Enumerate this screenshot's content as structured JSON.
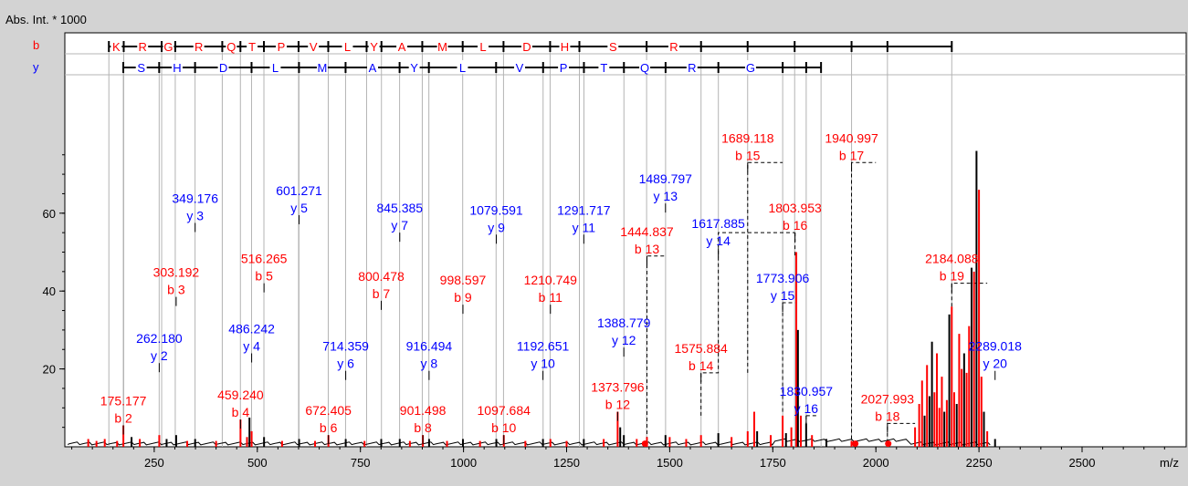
{
  "colors": {
    "background": "#d3d3d3",
    "plot_bg": "#ffffff",
    "b_ions": "#ff0000",
    "y_ions": "#0000ff",
    "spectrum": "#000000",
    "guide": "#b4b4b4"
  },
  "chart_data": {
    "type": "bar",
    "ylabel": "Abs. Int. * 1000",
    "xunit": "m/z",
    "xlim": [
      30,
      2760
    ],
    "ylim": [
      0,
      80
    ],
    "xticks": [
      250,
      500,
      750,
      1000,
      1250,
      1500,
      1750,
      2000,
      2250,
      2500
    ],
    "yticks": [
      20,
      40,
      60
    ],
    "series_labels": [
      "b",
      "y"
    ],
    "b_sequence": {
      "residues": [
        "K",
        "R",
        "G",
        "R",
        "Q",
        "T",
        "P",
        "V",
        "L",
        "Y",
        "A",
        "M",
        "L",
        "D",
        "H",
        "S",
        "R"
      ],
      "boundaries": [
        140,
        176,
        268,
        301,
        415,
        459,
        516,
        600,
        672,
        765,
        801,
        900,
        998,
        1097,
        1210,
        1281,
        1444,
        1576,
        1689,
        1803,
        1941,
        2028,
        2184
      ]
    },
    "y_sequence": {
      "residues": [
        "S",
        "H",
        "D",
        "L",
        "M",
        "A",
        "Y",
        "L",
        "V",
        "P",
        "T",
        "Q",
        "R",
        "G"
      ],
      "boundaries": [
        175,
        262,
        349,
        486,
        601,
        714,
        845,
        916,
        1079,
        1193,
        1292,
        1389,
        1490,
        1618,
        1774,
        1831,
        1867
      ]
    },
    "b_ions": [
      {
        "mz": 175.177,
        "intensity": 5.5,
        "label": "b 2"
      },
      {
        "mz": 303.192,
        "intensity": 38.5,
        "label": "b 3"
      },
      {
        "mz": 459.24,
        "intensity": 7.0,
        "label": "b 4"
      },
      {
        "mz": 516.265,
        "intensity": 42.0,
        "label": "b 5"
      },
      {
        "mz": 672.405,
        "intensity": 3.0,
        "label": "b 6"
      },
      {
        "mz": 800.478,
        "intensity": 37.5,
        "label": "b 7"
      },
      {
        "mz": 901.498,
        "intensity": 3.0,
        "label": "b 8"
      },
      {
        "mz": 998.597,
        "intensity": 36.5,
        "label": "b 9"
      },
      {
        "mz": 1097.684,
        "intensity": 3.0,
        "label": "b 10"
      },
      {
        "mz": 1210.749,
        "intensity": 36.5,
        "label": "b 11"
      },
      {
        "mz": 1373.796,
        "intensity": 9.0,
        "label": "b 12"
      },
      {
        "mz": 1444.837,
        "intensity": 49.0,
        "label": "b 13"
      },
      {
        "mz": 1575.884,
        "intensity": 19.0,
        "label": "b 14"
      },
      {
        "mz": 1689.118,
        "intensity": 73.0,
        "label": "b 15"
      },
      {
        "mz": 1803.953,
        "intensity": 55.0,
        "label": "b 16"
      },
      {
        "mz": 1940.997,
        "intensity": 73.0,
        "label": "b 17"
      },
      {
        "mz": 2027.993,
        "intensity": 6.0,
        "label": "b 18"
      },
      {
        "mz": 2184.088,
        "intensity": 42.0,
        "label": "b 19"
      }
    ],
    "y_ions": [
      {
        "mz": 262.18,
        "intensity": 21.5,
        "label": "y 2"
      },
      {
        "mz": 349.176,
        "intensity": 57.5,
        "label": "y 3"
      },
      {
        "mz": 486.242,
        "intensity": 24.0,
        "label": "y 4"
      },
      {
        "mz": 601.271,
        "intensity": 59.5,
        "label": "y 5"
      },
      {
        "mz": 714.359,
        "intensity": 19.5,
        "label": "y 6"
      },
      {
        "mz": 845.385,
        "intensity": 55.0,
        "label": "y 7"
      },
      {
        "mz": 916.494,
        "intensity": 19.5,
        "label": "y 8"
      },
      {
        "mz": 1079.591,
        "intensity": 54.5,
        "label": "y 9"
      },
      {
        "mz": 1192.651,
        "intensity": 19.5,
        "label": "y 10"
      },
      {
        "mz": 1291.717,
        "intensity": 54.5,
        "label": "y 11"
      },
      {
        "mz": 1388.779,
        "intensity": 25.5,
        "label": "y 12"
      },
      {
        "mz": 1489.797,
        "intensity": 62.5,
        "label": "y 13"
      },
      {
        "mz": 1617.885,
        "intensity": 51.0,
        "label": "y 14"
      },
      {
        "mz": 1773.906,
        "intensity": 37.0,
        "label": "y 15"
      },
      {
        "mz": 1830.957,
        "intensity": 8.0,
        "label": "y 16"
      },
      {
        "mz": 2289.018,
        "intensity": 19.5,
        "label": "y 20"
      }
    ],
    "spectrum_peaks": [
      {
        "mz": 90,
        "i": 2.0,
        "c": "r"
      },
      {
        "mz": 110,
        "i": 1.5,
        "c": "r"
      },
      {
        "mz": 130,
        "i": 2.0,
        "c": "r"
      },
      {
        "mz": 160,
        "i": 1.5,
        "c": "r"
      },
      {
        "mz": 175.2,
        "i": 5.5,
        "c": "r"
      },
      {
        "mz": 195,
        "i": 2.5,
        "c": "k"
      },
      {
        "mz": 215,
        "i": 2.0,
        "c": "r"
      },
      {
        "mz": 262.2,
        "i": 3.0,
        "c": "r"
      },
      {
        "mz": 280,
        "i": 2.0,
        "c": "k"
      },
      {
        "mz": 303.2,
        "i": 3.0,
        "c": "k"
      },
      {
        "mz": 330,
        "i": 1.5,
        "c": "r"
      },
      {
        "mz": 349.2,
        "i": 2.0,
        "c": "k"
      },
      {
        "mz": 400,
        "i": 1.5,
        "c": "r"
      },
      {
        "mz": 459.2,
        "i": 7.0,
        "c": "r"
      },
      {
        "mz": 475,
        "i": 2.5,
        "c": "r"
      },
      {
        "mz": 481,
        "i": 7.5,
        "c": "k"
      },
      {
        "mz": 486.2,
        "i": 4.0,
        "c": "r"
      },
      {
        "mz": 516.3,
        "i": 2.5,
        "c": "k"
      },
      {
        "mz": 560,
        "i": 1.5,
        "c": "r"
      },
      {
        "mz": 601.3,
        "i": 2.0,
        "c": "k"
      },
      {
        "mz": 640,
        "i": 1.5,
        "c": "r"
      },
      {
        "mz": 672.4,
        "i": 3.0,
        "c": "r"
      },
      {
        "mz": 714.4,
        "i": 2.0,
        "c": "k"
      },
      {
        "mz": 760,
        "i": 1.5,
        "c": "r"
      },
      {
        "mz": 800.5,
        "i": 2.0,
        "c": "k"
      },
      {
        "mz": 845.4,
        "i": 2.0,
        "c": "k"
      },
      {
        "mz": 870,
        "i": 1.5,
        "c": "r"
      },
      {
        "mz": 901.5,
        "i": 3.0,
        "c": "r"
      },
      {
        "mz": 916.5,
        "i": 2.0,
        "c": "k"
      },
      {
        "mz": 960,
        "i": 1.5,
        "c": "r"
      },
      {
        "mz": 998.6,
        "i": 2.0,
        "c": "k"
      },
      {
        "mz": 1040,
        "i": 1.5,
        "c": "r"
      },
      {
        "mz": 1079.6,
        "i": 2.0,
        "c": "k"
      },
      {
        "mz": 1097.7,
        "i": 3.0,
        "c": "r"
      },
      {
        "mz": 1150,
        "i": 1.5,
        "c": "r"
      },
      {
        "mz": 1192.7,
        "i": 2.0,
        "c": "k"
      },
      {
        "mz": 1210.7,
        "i": 2.0,
        "c": "r"
      },
      {
        "mz": 1250,
        "i": 1.5,
        "c": "r"
      },
      {
        "mz": 1291.7,
        "i": 2.0,
        "c": "k"
      },
      {
        "mz": 1340,
        "i": 2.0,
        "c": "r"
      },
      {
        "mz": 1373.8,
        "i": 9.0,
        "c": "r"
      },
      {
        "mz": 1380,
        "i": 5.0,
        "c": "k"
      },
      {
        "mz": 1388.8,
        "i": 3.0,
        "c": "k"
      },
      {
        "mz": 1420,
        "i": 2.0,
        "c": "r"
      },
      {
        "mz": 1444.8,
        "i": 2.5,
        "c": "r"
      },
      {
        "mz": 1489.8,
        "i": 3.0,
        "c": "k"
      },
      {
        "mz": 1500,
        "i": 2.5,
        "c": "r"
      },
      {
        "mz": 1540,
        "i": 2.0,
        "c": "r"
      },
      {
        "mz": 1575.9,
        "i": 3.0,
        "c": "r"
      },
      {
        "mz": 1617.9,
        "i": 3.5,
        "c": "k"
      },
      {
        "mz": 1650,
        "i": 2.5,
        "c": "r"
      },
      {
        "mz": 1689.1,
        "i": 4.0,
        "c": "r"
      },
      {
        "mz": 1705,
        "i": 9.0,
        "c": "r"
      },
      {
        "mz": 1712,
        "i": 4.0,
        "c": "k"
      },
      {
        "mz": 1745,
        "i": 3.0,
        "c": "r"
      },
      {
        "mz": 1773.9,
        "i": 8.0,
        "c": "r"
      },
      {
        "mz": 1782,
        "i": 3.5,
        "c": "k"
      },
      {
        "mz": 1795,
        "i": 5.0,
        "c": "r"
      },
      {
        "mz": 1807,
        "i": 50.0,
        "c": "r"
      },
      {
        "mz": 1811,
        "i": 30.0,
        "c": "k"
      },
      {
        "mz": 1818,
        "i": 8.0,
        "c": "r"
      },
      {
        "mz": 1830.9,
        "i": 6.0,
        "c": "k"
      },
      {
        "mz": 1845,
        "i": 3.0,
        "c": "r"
      },
      {
        "mz": 1880,
        "i": 2.0,
        "c": "k"
      },
      {
        "mz": 1940.9,
        "i": 1.5,
        "c": "r"
      },
      {
        "mz": 2028,
        "i": 1.5,
        "c": "r"
      },
      {
        "mz": 2095,
        "i": 5.0,
        "c": "r"
      },
      {
        "mz": 2105,
        "i": 11.0,
        "c": "r"
      },
      {
        "mz": 2112,
        "i": 17.0,
        "c": "r"
      },
      {
        "mz": 2118,
        "i": 8.0,
        "c": "k"
      },
      {
        "mz": 2124,
        "i": 21.0,
        "c": "r"
      },
      {
        "mz": 2130,
        "i": 13.0,
        "c": "k"
      },
      {
        "mz": 2136,
        "i": 27.0,
        "c": "k"
      },
      {
        "mz": 2142,
        "i": 14.0,
        "c": "r"
      },
      {
        "mz": 2148,
        "i": 24.0,
        "c": "r"
      },
      {
        "mz": 2154,
        "i": 10.0,
        "c": "r"
      },
      {
        "mz": 2160,
        "i": 18.0,
        "c": "r"
      },
      {
        "mz": 2166,
        "i": 9.0,
        "c": "k"
      },
      {
        "mz": 2172,
        "i": 12.0,
        "c": "r"
      },
      {
        "mz": 2178,
        "i": 34.0,
        "c": "k"
      },
      {
        "mz": 2184,
        "i": 36.0,
        "c": "r"
      },
      {
        "mz": 2190,
        "i": 14.0,
        "c": "r"
      },
      {
        "mz": 2196,
        "i": 11.0,
        "c": "k"
      },
      {
        "mz": 2202,
        "i": 29.0,
        "c": "r"
      },
      {
        "mz": 2208,
        "i": 20.0,
        "c": "r"
      },
      {
        "mz": 2214,
        "i": 24.0,
        "c": "k"
      },
      {
        "mz": 2220,
        "i": 19.0,
        "c": "r"
      },
      {
        "mz": 2226,
        "i": 31.0,
        "c": "r"
      },
      {
        "mz": 2232,
        "i": 46.0,
        "c": "k"
      },
      {
        "mz": 2238,
        "i": 45.0,
        "c": "r"
      },
      {
        "mz": 2244,
        "i": 76.0,
        "c": "k"
      },
      {
        "mz": 2250,
        "i": 66.0,
        "c": "r"
      },
      {
        "mz": 2256,
        "i": 18.0,
        "c": "r"
      },
      {
        "mz": 2262,
        "i": 9.0,
        "c": "k"
      },
      {
        "mz": 2270,
        "i": 4.0,
        "c": "r"
      },
      {
        "mz": 2289,
        "i": 2.0,
        "c": "k"
      }
    ],
    "markers": [
      1440,
      1950,
      2030
    ]
  }
}
